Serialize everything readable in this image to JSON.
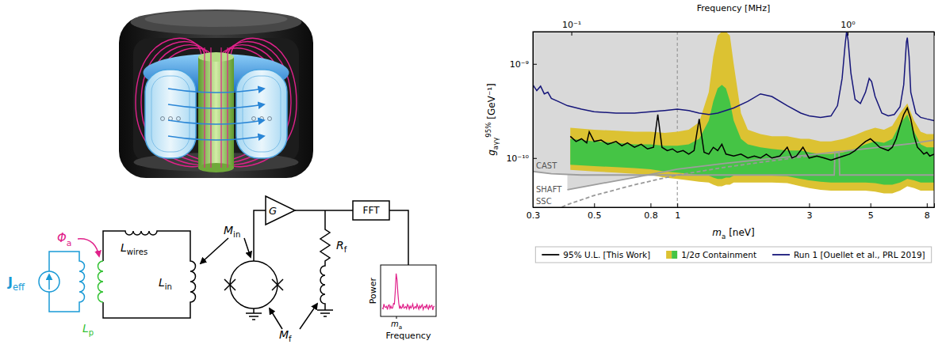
{
  "chart_data": {
    "type": "line",
    "log": true,
    "xlabel": {
      "text": "m",
      "sub": "a",
      "tail": " [neV]"
    },
    "ylabel": {
      "text": "g",
      "sub": "aγγ",
      "sup": "95%",
      "tail": " [GeV⁻¹]"
    },
    "top_axis": {
      "label": "Frequency [MHz]",
      "xlim": [
        0.07254,
        2.0553
      ],
      "xticks": [
        {
          "value": 0.1,
          "label": "10⁻¹"
        },
        {
          "value": 1,
          "label": "10⁰"
        }
      ]
    },
    "xlim": [
      0.3,
      8.5
    ],
    "xticks": [
      0.3,
      0.5,
      0.8,
      1,
      3,
      5,
      8
    ],
    "ylim": [
      3e-11,
      2.2e-09
    ],
    "yticks": [
      {
        "value": 1e-10,
        "label": "10⁻¹⁰"
      },
      {
        "value": 1e-09,
        "label": "10⁻⁹"
      }
    ],
    "legend": "bottom",
    "vlines": [
      1
    ],
    "series": [
      {
        "name": "95% U.L. [This Work]",
        "type": "line",
        "color": "#000000",
        "line_style": "solid",
        "x": [
          0.41,
          0.43,
          0.45,
          0.47,
          0.48,
          0.5,
          0.53,
          0.56,
          0.6,
          0.63,
          0.66,
          0.7,
          0.74,
          0.78,
          0.82,
          0.85,
          0.88,
          0.92,
          0.96,
          1.0,
          1.05,
          1.1,
          1.15,
          1.2,
          1.25,
          1.3,
          1.35,
          1.4,
          1.45,
          1.5,
          1.6,
          1.7,
          1.8,
          1.9,
          2.0,
          2.1,
          2.2,
          2.35,
          2.5,
          2.6,
          2.7,
          2.85,
          3.0,
          3.2,
          3.4,
          3.6,
          3.8,
          4.0,
          4.2,
          4.4,
          4.6,
          4.8,
          5.0,
          5.2,
          5.4,
          5.6,
          5.8,
          6.0,
          6.2,
          6.4,
          6.6,
          6.8,
          7.0,
          7.2,
          7.4,
          7.6,
          7.8,
          8.0,
          8.2,
          8.5
        ],
        "values": [
          1.7e-10,
          1.5e-10,
          1.6e-10,
          1.45e-10,
          1.9e-10,
          1.5e-10,
          1.55e-10,
          1.4e-10,
          1.5e-10,
          1.35e-10,
          1.45e-10,
          1.3e-10,
          1.4e-10,
          1.25e-10,
          1.3e-10,
          2.9e-10,
          1.3e-10,
          1.2e-10,
          1.25e-10,
          1.15e-10,
          1.2e-10,
          1.1e-10,
          1.2e-10,
          2.6e-10,
          1.15e-10,
          1.1e-10,
          1.3e-10,
          1.2e-10,
          1.4e-10,
          1.1e-10,
          1.05e-10,
          1.1e-10,
          1e-10,
          1.05e-10,
          1e-10,
          1.1e-10,
          1e-10,
          1.05e-10,
          1.3e-10,
          1e-10,
          1.05e-10,
          1.3e-10,
          1e-10,
          1.05e-10,
          1e-10,
          9.5e-11,
          1e-10,
          1.05e-10,
          1.1e-10,
          1.2e-10,
          1.35e-10,
          1.5e-10,
          1.6e-10,
          1.45e-10,
          1.3e-10,
          1.25e-10,
          1.2e-10,
          1.3e-10,
          1.6e-10,
          2.2e-10,
          2.9e-10,
          3.4e-10,
          2.6e-10,
          1.7e-10,
          1.3e-10,
          1.2e-10,
          1.1e-10,
          1.15e-10,
          1.05e-10,
          1.1e-10
        ]
      },
      {
        "name": "1/2σ Containment",
        "type": "band",
        "colors": [
          "#45c445",
          "#dcc232"
        ],
        "x": [
          0.41,
          0.5,
          0.6,
          0.7,
          0.8,
          0.9,
          1.0,
          1.1,
          1.2,
          1.3,
          1.35,
          1.4,
          1.45,
          1.5,
          1.55,
          1.6,
          1.7,
          1.8,
          2.0,
          2.2,
          2.5,
          2.8,
          3.0,
          3.3,
          3.6,
          4.0,
          4.4,
          4.8,
          5.2,
          5.6,
          6.0,
          6.4,
          6.8,
          7.2,
          7.6,
          8.0,
          8.5
        ],
        "lower_1sigma": [
          8.5e-11,
          8.2e-11,
          8e-11,
          7.8e-11,
          7.6e-11,
          7.2e-11,
          7e-11,
          6.8e-11,
          6.6e-11,
          6.5e-11,
          6.2e-11,
          6e-11,
          6e-11,
          6.2e-11,
          6.2e-11,
          6.5e-11,
          6.5e-11,
          6.5e-11,
          6.5e-11,
          6.5e-11,
          6.4e-11,
          6e-11,
          5.8e-11,
          5.6e-11,
          5.5e-11,
          5.5e-11,
          5.5e-11,
          5.5e-11,
          5.4e-11,
          5.2e-11,
          5.2e-11,
          5.5e-11,
          6e-11,
          5.8e-11,
          5.5e-11,
          5.5e-11,
          5.5e-11
        ],
        "upper_1sigma": [
          1.6e-10,
          1.5e-10,
          1.45e-10,
          1.4e-10,
          1.4e-10,
          1.35e-10,
          1.35e-10,
          1.4e-10,
          1.6e-10,
          2.5e-10,
          4e-10,
          5.5e-10,
          6e-10,
          5.5e-10,
          4e-10,
          2.5e-10,
          1.6e-10,
          1.4e-10,
          1.3e-10,
          1.25e-10,
          1.2e-10,
          1.2e-10,
          1.15e-10,
          1.1e-10,
          1.1e-10,
          1.15e-10,
          1.25e-10,
          1.4e-10,
          1.5e-10,
          1.45e-10,
          1.6e-10,
          2.3e-10,
          2.9e-10,
          1.9e-10,
          1.4e-10,
          1.3e-10,
          1.3e-10
        ],
        "lower_2sigma": [
          7.5e-11,
          7.2e-11,
          7e-11,
          6.8e-11,
          6.6e-11,
          6.2e-11,
          6e-11,
          5.8e-11,
          5.6e-11,
          5.5e-11,
          5.2e-11,
          5e-11,
          5e-11,
          5.2e-11,
          5.2e-11,
          5.5e-11,
          5.5e-11,
          5.5e-11,
          5.5e-11,
          5.5e-11,
          5.4e-11,
          5e-11,
          4.8e-11,
          4.6e-11,
          4.5e-11,
          4.5e-11,
          4.5e-11,
          4.5e-11,
          4.4e-11,
          4.2e-11,
          4.2e-11,
          4.5e-11,
          5e-11,
          4.8e-11,
          4.5e-11,
          4.5e-11,
          4.5e-11
        ],
        "upper_2sigma": [
          2.1e-10,
          2e-10,
          1.95e-10,
          1.9e-10,
          1.9e-10,
          1.85e-10,
          1.9e-10,
          2e-10,
          2.4e-10,
          5e-10,
          1.2e-09,
          2e-09,
          2.2e-09,
          2.2e-09,
          2e-09,
          1e-09,
          3e-10,
          2e-10,
          1.8e-10,
          1.7e-10,
          1.7e-10,
          1.6e-10,
          1.6e-10,
          1.5e-10,
          1.5e-10,
          1.6e-10,
          1.75e-10,
          1.95e-10,
          2.1e-10,
          2e-10,
          2.2e-10,
          3e-10,
          3.8e-10,
          2.5e-10,
          1.9e-10,
          1.8e-10,
          1.8e-10
        ]
      },
      {
        "name": "Run 1 [Ouellet et al., PRL 2019]",
        "type": "line",
        "color": "#16167a",
        "line_style": "solid",
        "x": [
          0.3,
          0.31,
          0.32,
          0.33,
          0.34,
          0.35,
          0.37,
          0.4,
          0.45,
          0.5,
          0.6,
          0.7,
          0.8,
          0.9,
          1.0,
          1.1,
          1.2,
          1.3,
          1.4,
          1.6,
          1.8,
          2.0,
          2.2,
          2.5,
          2.8,
          3.0,
          3.3,
          3.6,
          3.8,
          3.95,
          4.05,
          4.1,
          4.15,
          4.25,
          4.4,
          4.6,
          4.8,
          4.95,
          5.05,
          5.2,
          5.5,
          5.8,
          6.1,
          6.4,
          6.6,
          6.7,
          6.75,
          6.8,
          6.9,
          7.0,
          7.3,
          7.6,
          8.0,
          8.5
        ],
        "values": [
          6e-10,
          5.2e-10,
          5.8e-10,
          4.8e-10,
          5e-10,
          4.3e-10,
          4e-10,
          3.6e-10,
          3.3e-10,
          3.1e-10,
          3e-10,
          3e-10,
          3.1e-10,
          3.2e-10,
          3.3e-10,
          3.2e-10,
          3e-10,
          2.9e-10,
          3e-10,
          3.4e-10,
          4e-10,
          4.8e-10,
          4.5e-10,
          3.6e-10,
          3e-10,
          2.8e-10,
          2.7e-10,
          2.8e-10,
          3.6e-10,
          7e-10,
          1.6e-09,
          2.2e-09,
          1.8e-09,
          8e-10,
          4.2e-10,
          3.8e-10,
          5e-10,
          7e-10,
          6.5e-10,
          4.5e-10,
          3e-10,
          2.8e-10,
          2.9e-10,
          3.5e-10,
          6e-10,
          1.2e-09,
          1.7e-09,
          1.9e-09,
          1.2e-09,
          5e-10,
          3e-10,
          2.7e-10,
          2.6e-10,
          2.5e-10
        ]
      }
    ],
    "limits": [
      {
        "name": "CAST",
        "type": "area",
        "color": "#d9d9d9",
        "line_style": "solid",
        "x": [
          0.3,
          0.35,
          0.45,
          3.7,
          3.72,
          3.85,
          3.87,
          8.5
        ],
        "values": [
          7.2e-11,
          6.8e-11,
          6.6e-11,
          6.6e-11,
          1.15e-10,
          1.15e-10,
          6.6e-11,
          6.6e-11
        ]
      },
      {
        "name": "SHAFT",
        "type": "area",
        "color": "#d9d9d9",
        "line_style": "solid",
        "x": [
          0.4,
          0.5,
          0.7,
          1.0,
          1.5,
          2.0,
          3.0,
          4.0,
          5.0,
          6.0,
          7.0,
          8.5
        ],
        "values": [
          4.6e-11,
          5.2e-11,
          6.2e-11,
          7.6e-11,
          8.8e-11,
          9.6e-11,
          1.08e-10,
          1.18e-10,
          1.27e-10,
          1.35e-10,
          1.42e-10,
          1.55e-10
        ]
      },
      {
        "name": "SSC",
        "type": "line",
        "color": "#999999",
        "line_style": "dashed",
        "x": [
          0.3,
          0.4,
          0.5,
          0.7,
          1.0,
          1.5,
          2.0,
          3.0
        ],
        "values": [
          2.2e-11,
          3.2e-11,
          4e-11,
          5.2e-11,
          6.6e-11,
          8e-11,
          9e-11,
          1.05e-10
        ]
      }
    ]
  },
  "diagram": {
    "source_current": {
      "text": "J",
      "sub": "eff"
    },
    "flux": {
      "text": "Φ",
      "sub": "a"
    },
    "wire_inductance": {
      "text": "L",
      "sub": "wires"
    },
    "pickup_inductance": {
      "text": "L",
      "sub": "p"
    },
    "input_inductance": {
      "text": "L",
      "sub": "in"
    },
    "input_coupling": {
      "text": "M",
      "sub": "in"
    },
    "amplifier_gain": {
      "text": "G"
    },
    "feedback_resistor": {
      "text": "R",
      "sub": "f"
    },
    "feedback_coupling": {
      "text": "M",
      "sub": "f"
    },
    "fft": {
      "text": "FFT"
    },
    "inset": {
      "ylabel": {
        "text": "Power"
      },
      "xlabel": {
        "text": "Frequency"
      },
      "tick": {
        "text": "m",
        "sub": "a"
      }
    }
  }
}
